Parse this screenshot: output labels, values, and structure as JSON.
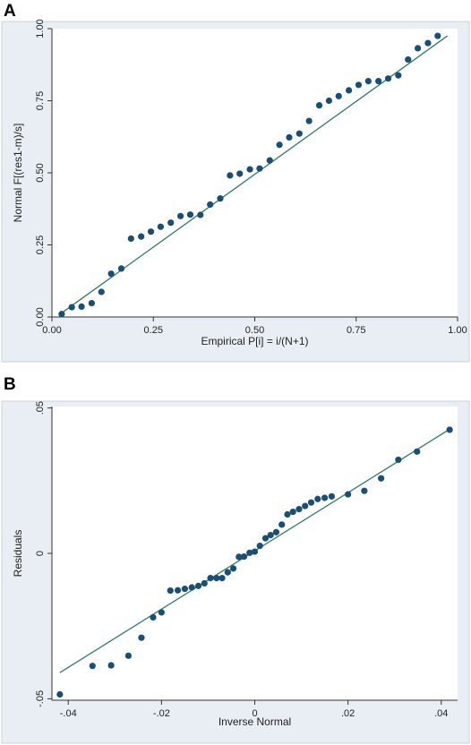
{
  "panels": [
    {
      "letter": "A"
    },
    {
      "letter": "B"
    }
  ],
  "chart_data": [
    {
      "type": "scatter",
      "title": "",
      "xlabel": "Empirical P[i] = i/(N+1)",
      "ylabel": "Normal F[(res1-m)/s]",
      "xlim": [
        0,
        1
      ],
      "ylim": [
        0,
        1
      ],
      "xticks": [
        "0.00",
        "0.25",
        "0.50",
        "0.75",
        "1.00"
      ],
      "yticks": [
        "0.00",
        "0.25",
        "0.50",
        "0.75",
        "1.00"
      ],
      "grid": false,
      "legend": "none",
      "colors": {
        "points": "#1a4e73",
        "line": "#2e7d5b",
        "panel_bg": "#e8eef3"
      },
      "reference_line": [
        [
          0.025,
          0.015
        ],
        [
          0.975,
          0.975
        ]
      ],
      "points": [
        [
          0.024,
          0.01
        ],
        [
          0.049,
          0.034
        ],
        [
          0.073,
          0.036
        ],
        [
          0.098,
          0.048
        ],
        [
          0.122,
          0.087
        ],
        [
          0.146,
          0.15
        ],
        [
          0.171,
          0.168
        ],
        [
          0.195,
          0.272
        ],
        [
          0.22,
          0.279
        ],
        [
          0.244,
          0.296
        ],
        [
          0.268,
          0.313
        ],
        [
          0.293,
          0.327
        ],
        [
          0.317,
          0.35
        ],
        [
          0.341,
          0.355
        ],
        [
          0.366,
          0.354
        ],
        [
          0.39,
          0.39
        ],
        [
          0.415,
          0.411
        ],
        [
          0.439,
          0.491
        ],
        [
          0.463,
          0.497
        ],
        [
          0.488,
          0.512
        ],
        [
          0.512,
          0.515
        ],
        [
          0.537,
          0.543
        ],
        [
          0.561,
          0.597
        ],
        [
          0.585,
          0.623
        ],
        [
          0.61,
          0.636
        ],
        [
          0.634,
          0.68
        ],
        [
          0.659,
          0.734
        ],
        [
          0.683,
          0.75
        ],
        [
          0.707,
          0.766
        ],
        [
          0.732,
          0.786
        ],
        [
          0.756,
          0.805
        ],
        [
          0.78,
          0.818
        ],
        [
          0.805,
          0.818
        ],
        [
          0.829,
          0.827
        ],
        [
          0.854,
          0.838
        ],
        [
          0.878,
          0.893
        ],
        [
          0.902,
          0.932
        ],
        [
          0.927,
          0.95
        ],
        [
          0.951,
          0.975
        ]
      ]
    },
    {
      "type": "scatter",
      "title": "",
      "xlabel": "Inverse Normal",
      "ylabel": "Residuals",
      "xlim": [
        -0.0435,
        0.0435
      ],
      "ylim": [
        -0.0505,
        0.0505
      ],
      "xticks": [
        {
          "value": -0.04,
          "label": "-.04"
        },
        {
          "value": -0.02,
          "label": "-.02"
        },
        {
          "value": 0,
          "label": "0"
        },
        {
          "value": 0.02,
          "label": ".02"
        },
        {
          "value": 0.04,
          "label": ".04"
        }
      ],
      "yticks": [
        {
          "value": -0.05,
          "label": "-.05"
        },
        {
          "value": 0,
          "label": "0"
        },
        {
          "value": 0.05,
          "label": ".05"
        }
      ],
      "grid": false,
      "legend": "none",
      "colors": {
        "points": "#1a4e73",
        "line": "#2e7d5b",
        "panel_bg": "#e8eef3"
      },
      "reference_line": [
        [
          -0.0418,
          -0.041
        ],
        [
          0.0418,
          0.0427
        ]
      ],
      "points": [
        [
          -0.0418,
          -0.0485
        ],
        [
          -0.0348,
          -0.0387
        ],
        [
          -0.0308,
          -0.0385
        ],
        [
          -0.0271,
          -0.0352
        ],
        [
          -0.0243,
          -0.029
        ],
        [
          -0.0218,
          -0.022
        ],
        [
          -0.02,
          -0.0203
        ],
        [
          -0.0181,
          -0.0128
        ],
        [
          -0.0165,
          -0.0127
        ],
        [
          -0.015,
          -0.0122
        ],
        [
          -0.0135,
          -0.0117
        ],
        [
          -0.0121,
          -0.0112
        ],
        [
          -0.0108,
          -0.0103
        ],
        [
          -0.0095,
          -0.0085
        ],
        [
          -0.0082,
          -0.0085
        ],
        [
          -0.007,
          -0.0085
        ],
        [
          -0.0058,
          -0.0065
        ],
        [
          -0.0046,
          -0.0052
        ],
        [
          -0.0034,
          -0.0012
        ],
        [
          -0.0023,
          -0.0011
        ],
        [
          -0.0011,
          0.0002
        ],
        [
          0.0,
          0.0006
        ],
        [
          0.0011,
          0.0026
        ],
        [
          0.0023,
          0.0052
        ],
        [
          0.0034,
          0.0063
        ],
        [
          0.0046,
          0.0073
        ],
        [
          0.0058,
          0.0099
        ],
        [
          0.007,
          0.0134
        ],
        [
          0.0082,
          0.0143
        ],
        [
          0.0095,
          0.0152
        ],
        [
          0.0108,
          0.0163
        ],
        [
          0.0121,
          0.0175
        ],
        [
          0.0135,
          0.0187
        ],
        [
          0.015,
          0.0191
        ],
        [
          0.0165,
          0.0196
        ],
        [
          0.02,
          0.0203
        ],
        [
          0.0235,
          0.0215
        ],
        [
          0.0271,
          0.0258
        ],
        [
          0.0308,
          0.0322
        ],
        [
          0.0348,
          0.035
        ],
        [
          0.0418,
          0.0425
        ]
      ]
    }
  ]
}
